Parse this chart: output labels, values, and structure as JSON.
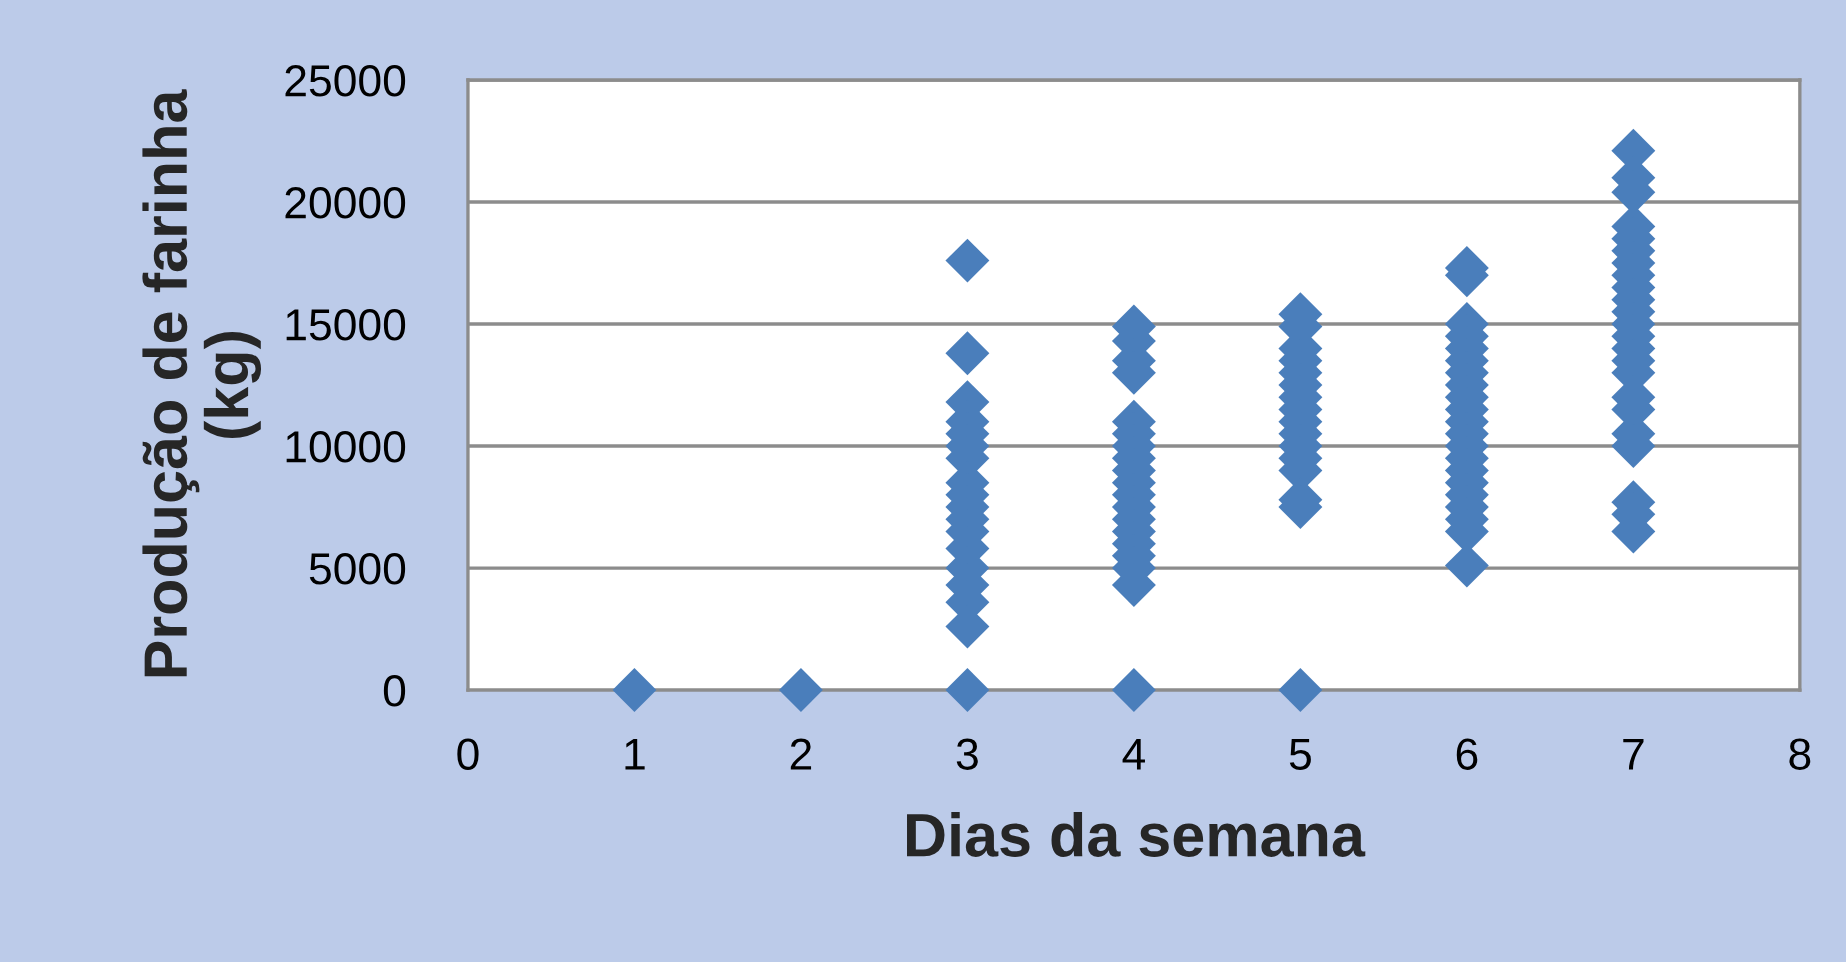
{
  "chart_data": {
    "type": "scatter",
    "xlabel": "Dias da semana",
    "ylabel": "Produção de farinha\n(kg)",
    "x": [
      1,
      2,
      3,
      3,
      3,
      3,
      3,
      3,
      3,
      3,
      3,
      3,
      3,
      3,
      3,
      3,
      3,
      3,
      3,
      3,
      4,
      4,
      4,
      4,
      4,
      4,
      4,
      4,
      4,
      4,
      4,
      4,
      4,
      4,
      4,
      4,
      4,
      4,
      4,
      5,
      5,
      5,
      5,
      5,
      5,
      5,
      5,
      5,
      5,
      5,
      5,
      5,
      5,
      5,
      5,
      6,
      6,
      6,
      6,
      6,
      6,
      6,
      6,
      6,
      6,
      6,
      6,
      6,
      6,
      6,
      6,
      6,
      6,
      6,
      6,
      6,
      7,
      7,
      7,
      7,
      7,
      7,
      7,
      7,
      7,
      7,
      7,
      7,
      7,
      7,
      7,
      7,
      7,
      7,
      7,
      7,
      7,
      7,
      7
    ],
    "values": [
      0,
      0,
      17600,
      13800,
      11800,
      11000,
      10500,
      10000,
      9500,
      8500,
      8000,
      7500,
      7000,
      6500,
      5800,
      5000,
      4300,
      3600,
      2600,
      0,
      14900,
      14300,
      13500,
      13000,
      11000,
      10500,
      10000,
      9500,
      9000,
      8500,
      8000,
      7500,
      7000,
      6500,
      6000,
      5500,
      5000,
      4300,
      0,
      15400,
      14900,
      14000,
      13500,
      13000,
      12500,
      12000,
      11500,
      11000,
      10500,
      10000,
      9500,
      9000,
      7800,
      7500,
      0,
      17300,
      17000,
      15000,
      14500,
      14000,
      13500,
      13000,
      12500,
      12000,
      11500,
      11000,
      10500,
      10000,
      9500,
      9000,
      8500,
      8000,
      7500,
      7000,
      6500,
      5100,
      22100,
      21000,
      20400,
      19000,
      18500,
      18000,
      17500,
      17000,
      16500,
      16000,
      15500,
      15000,
      14500,
      14000,
      13500,
      13000,
      12000,
      11500,
      10500,
      10000,
      7700,
      7200,
      6500
    ],
    "color": "#4a7ebb",
    "marker": "diamond",
    "xlim": [
      0,
      8
    ],
    "xticks": [
      0,
      1,
      2,
      3,
      4,
      5,
      6,
      7,
      8
    ],
    "ylim": [
      0,
      25000
    ],
    "yticks": [
      0,
      5000,
      10000,
      15000,
      20000,
      25000
    ],
    "grid": "y"
  }
}
